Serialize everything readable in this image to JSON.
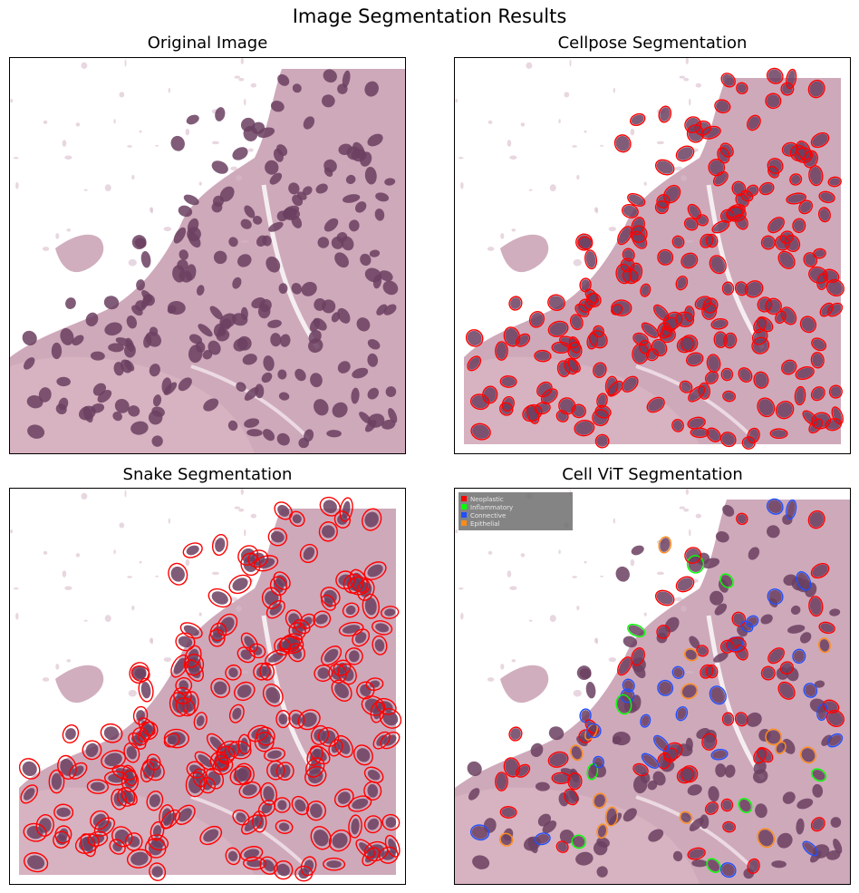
{
  "figure": {
    "title": "Image Segmentation Results"
  },
  "panels": [
    {
      "id": "original",
      "title": "Original Image"
    },
    {
      "id": "cellpose",
      "title": "Cellpose Segmentation"
    },
    {
      "id": "snake",
      "title": "Snake Segmentation"
    },
    {
      "id": "cellvit",
      "title": "Cell ViT Segmentation"
    }
  ],
  "legend": {
    "items": [
      {
        "label": "Neoplastic",
        "color": "#ff0000"
      },
      {
        "label": "Inflammatory",
        "color": "#00ff00"
      },
      {
        "label": "Connective",
        "color": "#1f4fff"
      },
      {
        "label": "Epithelial",
        "color": "#ff8c1a"
      }
    ]
  },
  "colors": {
    "tissue": "#c69aae",
    "stroma": "#d8b3c1",
    "nucleus": "#6b4060",
    "outline_red": "#ff0000"
  }
}
